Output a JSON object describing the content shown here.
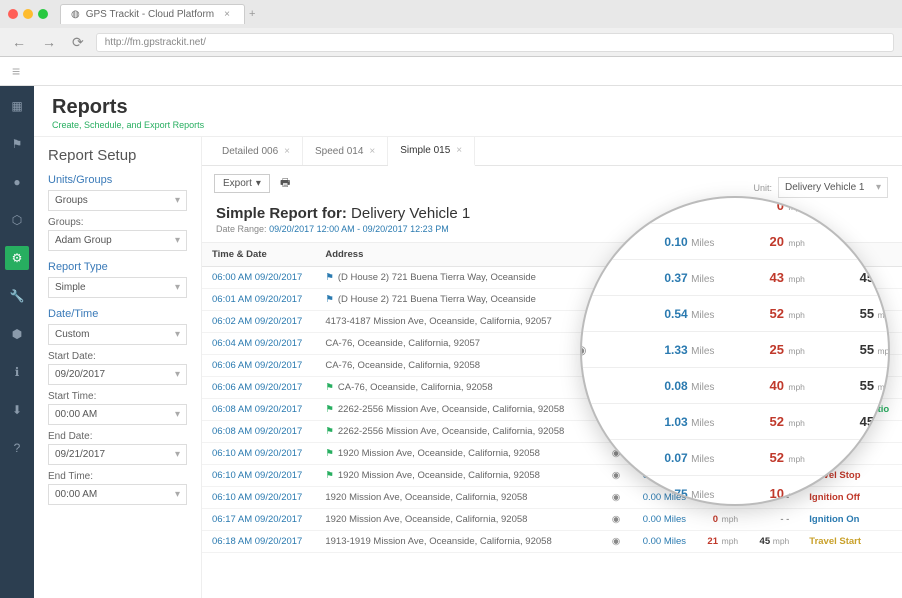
{
  "browser": {
    "tab_title": "GPS Trackit - Cloud Platform",
    "url": "http://fm.gpstrackit.net/"
  },
  "page": {
    "title": "Reports",
    "subtitle": "Create, Schedule, and Export Reports"
  },
  "toolbar": {
    "hamburger": "≡"
  },
  "sidebar_icons": [
    "▦",
    "⚑",
    "●",
    "⬡",
    "⚙",
    "🔧",
    "⬢",
    "ℹ",
    "⬇",
    "?"
  ],
  "setup": {
    "heading": "Report Setup",
    "sections": {
      "units_groups": {
        "label": "Units/Groups",
        "dropdown": "Groups",
        "groups_label": "Groups:",
        "group_value": "Adam Group"
      },
      "report_type": {
        "label": "Report Type",
        "value": "Simple"
      },
      "date_time": {
        "label": "Date/Time",
        "mode": "Custom",
        "start_date_label": "Start Date:",
        "start_date": "09/20/2017",
        "start_time_label": "Start Time:",
        "start_time": "00:00 AM",
        "end_date_label": "End Date:",
        "end_date": "09/21/2017",
        "end_time_label": "End Time:",
        "end_time": "00:00 AM"
      }
    }
  },
  "tabs": [
    {
      "label": "Detailed 006"
    },
    {
      "label": "Speed 014"
    },
    {
      "label": "Simple 015",
      "active": true
    }
  ],
  "actions": {
    "export_label": "Export",
    "unit_label": "Unit:",
    "unit_value": "Delivery Vehicle 1"
  },
  "report": {
    "title_prefix": "Simple Report for:",
    "vehicle": "Delivery Vehicle 1",
    "date_range_label": "Date Range:",
    "date_range": "09/20/2017 12:00 AM - 09/20/2017 12:23 PM",
    "columns": [
      "Time & Date",
      "Address",
      "",
      "",
      "Miles",
      "Speed",
      "PSL",
      "Event"
    ],
    "rows": [
      {
        "time": "06:00 AM 09/20/2017",
        "addr": "(D House 2) 721 Buena Tierra Way, Oceanside",
        "flag": "b",
        "spin": true,
        "miles": "0.54",
        "mph": "52",
        "psl": "55",
        "event": "Ignition On",
        "evtc": "evt-ignon"
      },
      {
        "time": "06:01 AM 09/20/2017",
        "addr": "(D House 2) 721 Buena Tierra Way, Oceanside",
        "flag": "b",
        "spin": true,
        "miles": "1.33",
        "mph": "25",
        "psl": "55",
        "event": "Travel Start",
        "evtc": "evt-tstart"
      },
      {
        "time": "06:02 AM 09/20/2017",
        "addr": "4173-4187 Mission Ave, Oceanside, California, 92057",
        "flag": "",
        "spin": true,
        "miles": "0.08",
        "mph": "40",
        "psl": "55",
        "event": "Drive",
        "evtc": "evt-drive"
      },
      {
        "time": "06:04 AM 09/20/2017",
        "addr": "CA-76, Oceanside, California, 92057",
        "flag": "",
        "spin": true,
        "miles": "1.03",
        "mph": "52",
        "psl": "45",
        "event": "Drive",
        "evtc": "evt-drive"
      },
      {
        "time": "06:06 AM 09/20/2017",
        "addr": "CA-76, Oceanside, California, 92058",
        "flag": "",
        "spin": false,
        "miles": "0.07",
        "mph": "52",
        "psl": "45",
        "event": "Drive",
        "evtc": "evt-drive"
      },
      {
        "time": "06:06 AM 09/20/2017",
        "addr": "CA-76, Oceanside, California, 92058",
        "flag": "g",
        "spin": false,
        "miles": "0.75",
        "mph": "10",
        "psl": "45",
        "event": "Drive",
        "evtc": "evt-drive"
      },
      {
        "time": "06:08 AM 09/20/2017",
        "addr": "2262-2556 Mission Ave, Oceanside, California, 92058",
        "flag": "g",
        "spin": true,
        "miles": "1.03",
        "mph": "52",
        "psl": "45",
        "event": "Rapid Acceleratio",
        "evtc": "evt-rapid"
      },
      {
        "time": "06:08 AM 09/20/2017",
        "addr": "2262-2556 Mission Ave, Oceanside, California, 92058",
        "flag": "g",
        "spin": true,
        "miles": "0.07",
        "mph": "52",
        "psl": "45",
        "event": "Hard Turn",
        "evtc": "evt-hard"
      },
      {
        "time": "06:10 AM 09/20/2017",
        "addr": "1920 Mission Ave, Oceanside, California, 92058",
        "flag": "g",
        "spin": true,
        "miles": "0.75",
        "mph": "10",
        "psl": "45",
        "event": "Drive",
        "evtc": "evt-drive"
      },
      {
        "time": "06:10 AM 09/20/2017",
        "addr": "1920 Mission Ave, Oceanside, California, 92058",
        "flag": "g",
        "spin": true,
        "miles": "0.00",
        "mph": "0",
        "psl": "- -",
        "event": "Travel Stop",
        "evtc": "evt-tstop"
      },
      {
        "time": "06:10 AM 09/20/2017",
        "addr": "1920 Mission Ave, Oceanside, California, 92058",
        "flag": "",
        "spin": true,
        "miles": "0.00",
        "mph": "0",
        "psl": "- -",
        "event": "Ignition Off",
        "evtc": "evt-ignoff"
      },
      {
        "time": "06:17 AM 09/20/2017",
        "addr": "1920 Mission Ave, Oceanside, California, 92058",
        "flag": "",
        "spin": true,
        "miles": "0.00",
        "mph": "0",
        "psl": "- -",
        "event": "Ignition On",
        "evtc": "evt-ignon"
      },
      {
        "time": "06:18 AM 09/20/2017",
        "addr": "1913-1919 Mission Ave, Oceanside, California, 92058",
        "flag": "",
        "spin": true,
        "miles": "0.00",
        "mph": "21",
        "psl": "45",
        "event": "Travel Start",
        "evtc": "evt-tstart"
      }
    ]
  },
  "magnifier": {
    "rows": [
      {
        "miles": "",
        "mph": "0",
        "psl": ""
      },
      {
        "miles": "0.10",
        "mph": "20",
        "psl": "25"
      },
      {
        "miles": "0.37",
        "mph": "43",
        "psl": "45"
      },
      {
        "miles": "0.54",
        "mph": "52",
        "psl": "55"
      },
      {
        "miles": "1.33",
        "mph": "25",
        "psl": "55"
      },
      {
        "miles": "0.08",
        "mph": "40",
        "psl": "55"
      },
      {
        "miles": "1.03",
        "mph": "52",
        "psl": "45"
      },
      {
        "miles": "0.07",
        "mph": "52",
        "psl": "45"
      },
      {
        "miles": "0.75",
        "mph": "10",
        "psl": "45"
      },
      {
        "miles": "",
        "mph": "0",
        "psl": ""
      }
    ]
  },
  "units": {
    "miles": "Miles",
    "mph": "mph"
  },
  "colors": {
    "rail": "#2c3e50",
    "accent": "#27ae60",
    "link": "#2a7ab0",
    "danger": "#c0392b",
    "warn": "#c9a12b",
    "purple": "#8e44ad"
  }
}
